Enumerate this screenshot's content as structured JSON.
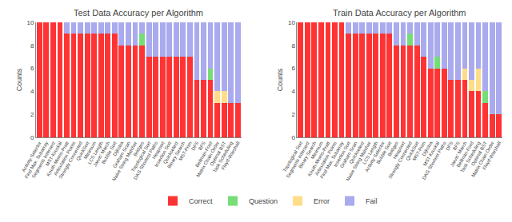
{
  "chart_data": [
    {
      "type": "bar",
      "stacked": true,
      "title": "Test Data Accuracy per Algorithm",
      "ylabel": "Counts",
      "categories": [
        "Activity Selector",
        "Find Max. Subarray",
        "Segments Intersect",
        "MST-Kruskal",
        "Knuth-Morris-Pratt",
        "Articulation Points",
        "Strongly Connected",
        "QuickSort",
        "Minimum",
        "LCS Length",
        "Jarvis' March",
        "Bubble Sort",
        "Dijkstra",
        "Graham Scan",
        "Naive String Matcher",
        "Bridges",
        "Topological Sort",
        "DAG Shortest Paths",
        "Heapsort",
        "Insertion Sort",
        "Quickselect",
        "Binary Search",
        "MST-Prim",
        "DFS",
        "BFS",
        "Bellman-Ford",
        "Matrix Chain Order",
        "Optimal BST",
        "Task Scheduling",
        "Floyd-Warshall"
      ],
      "series": [
        {
          "name": "Correct",
          "color": "#ff3333",
          "values": [
            10,
            10,
            10,
            10,
            9,
            9,
            9,
            9,
            9,
            9,
            9,
            9,
            8,
            8,
            8,
            8,
            7,
            7,
            7,
            7,
            7,
            7,
            7,
            5,
            5,
            5,
            3,
            3,
            3,
            3
          ]
        },
        {
          "name": "Question",
          "color": "#77dd77",
          "values": [
            0,
            0,
            0,
            0,
            0,
            0,
            0,
            0,
            0,
            0,
            0,
            0,
            0,
            0,
            0,
            1,
            0,
            0,
            0,
            0,
            0,
            0,
            0,
            0,
            0,
            1,
            0,
            0,
            0,
            0
          ]
        },
        {
          "name": "Error",
          "color": "#ffdd88",
          "values": [
            0,
            0,
            0,
            0,
            0,
            0,
            0,
            0,
            0,
            0,
            0,
            0,
            0,
            0,
            0,
            0,
            0,
            0,
            0,
            0,
            0,
            0,
            0,
            0,
            0,
            0,
            1,
            1,
            0,
            0
          ]
        },
        {
          "name": "Fail",
          "color": "#aaaaee",
          "values": [
            0,
            0,
            0,
            0,
            1,
            1,
            1,
            1,
            1,
            1,
            1,
            1,
            2,
            2,
            2,
            1,
            3,
            3,
            3,
            3,
            3,
            3,
            3,
            5,
            5,
            4,
            6,
            6,
            7,
            7
          ]
        }
      ],
      "ylim": [
        0,
        10
      ],
      "yticks": [
        0,
        2,
        4,
        6,
        8,
        10
      ],
      "grid": false,
      "legend": "bottom"
    },
    {
      "type": "bar",
      "stacked": true,
      "title": "Train Data Accuracy per Algorithm",
      "ylabel": "Counts",
      "categories": [
        "Topological Sort",
        "Segments Intersect",
        "Binary Search",
        "Minimum",
        "Knuth-Morris-Pratt",
        "Articulation Points",
        "Find Max. Subarray",
        "Insertion Sort",
        "Graham Scan",
        "Quickselect",
        "Naive String Matcher",
        "LCS Length",
        "Activity Selector",
        "Bubble Sort",
        "Bridges",
        "Heapsort",
        "Strongly Connected",
        "QuickSort",
        "MST-Prim",
        "Dijkstra",
        "MST-Kruskal",
        "DAG Shortest Paths",
        "DFS",
        "BFS",
        "Jarvis' March",
        "Bellman-Ford",
        "Task Scheduling",
        "Optimal BST",
        "Matrix Chain Order",
        "Floyd-Warshall"
      ],
      "series": [
        {
          "name": "Correct",
          "color": "#ff3333",
          "values": [
            10,
            10,
            10,
            10,
            10,
            10,
            10,
            9,
            9,
            9,
            9,
            9,
            9,
            9,
            8,
            8,
            8,
            8,
            7,
            6,
            6,
            6,
            5,
            5,
            5,
            4,
            4,
            3,
            2,
            2
          ]
        },
        {
          "name": "Question",
          "color": "#77dd77",
          "values": [
            0,
            0,
            0,
            0,
            0,
            0,
            0,
            0,
            0,
            0,
            0,
            0,
            0,
            0,
            0,
            0,
            1,
            0,
            0,
            0,
            1,
            0,
            0,
            0,
            0,
            0,
            0,
            1,
            0,
            0
          ]
        },
        {
          "name": "Error",
          "color": "#ffdd88",
          "values": [
            0,
            0,
            0,
            0,
            0,
            0,
            0,
            0,
            0,
            0,
            0,
            0,
            0,
            0,
            0,
            0,
            0,
            0,
            0,
            0,
            0,
            0,
            0,
            0,
            1,
            1,
            2,
            0,
            0,
            0
          ]
        },
        {
          "name": "Fail",
          "color": "#aaaaee",
          "values": [
            0,
            0,
            0,
            0,
            0,
            0,
            0,
            1,
            1,
            1,
            1,
            1,
            1,
            1,
            2,
            2,
            1,
            2,
            3,
            4,
            3,
            4,
            5,
            5,
            4,
            5,
            4,
            6,
            8,
            8
          ]
        }
      ],
      "ylim": [
        0,
        10
      ],
      "yticks": [
        0,
        2,
        4,
        6,
        8,
        10
      ],
      "grid": false
    }
  ]
}
